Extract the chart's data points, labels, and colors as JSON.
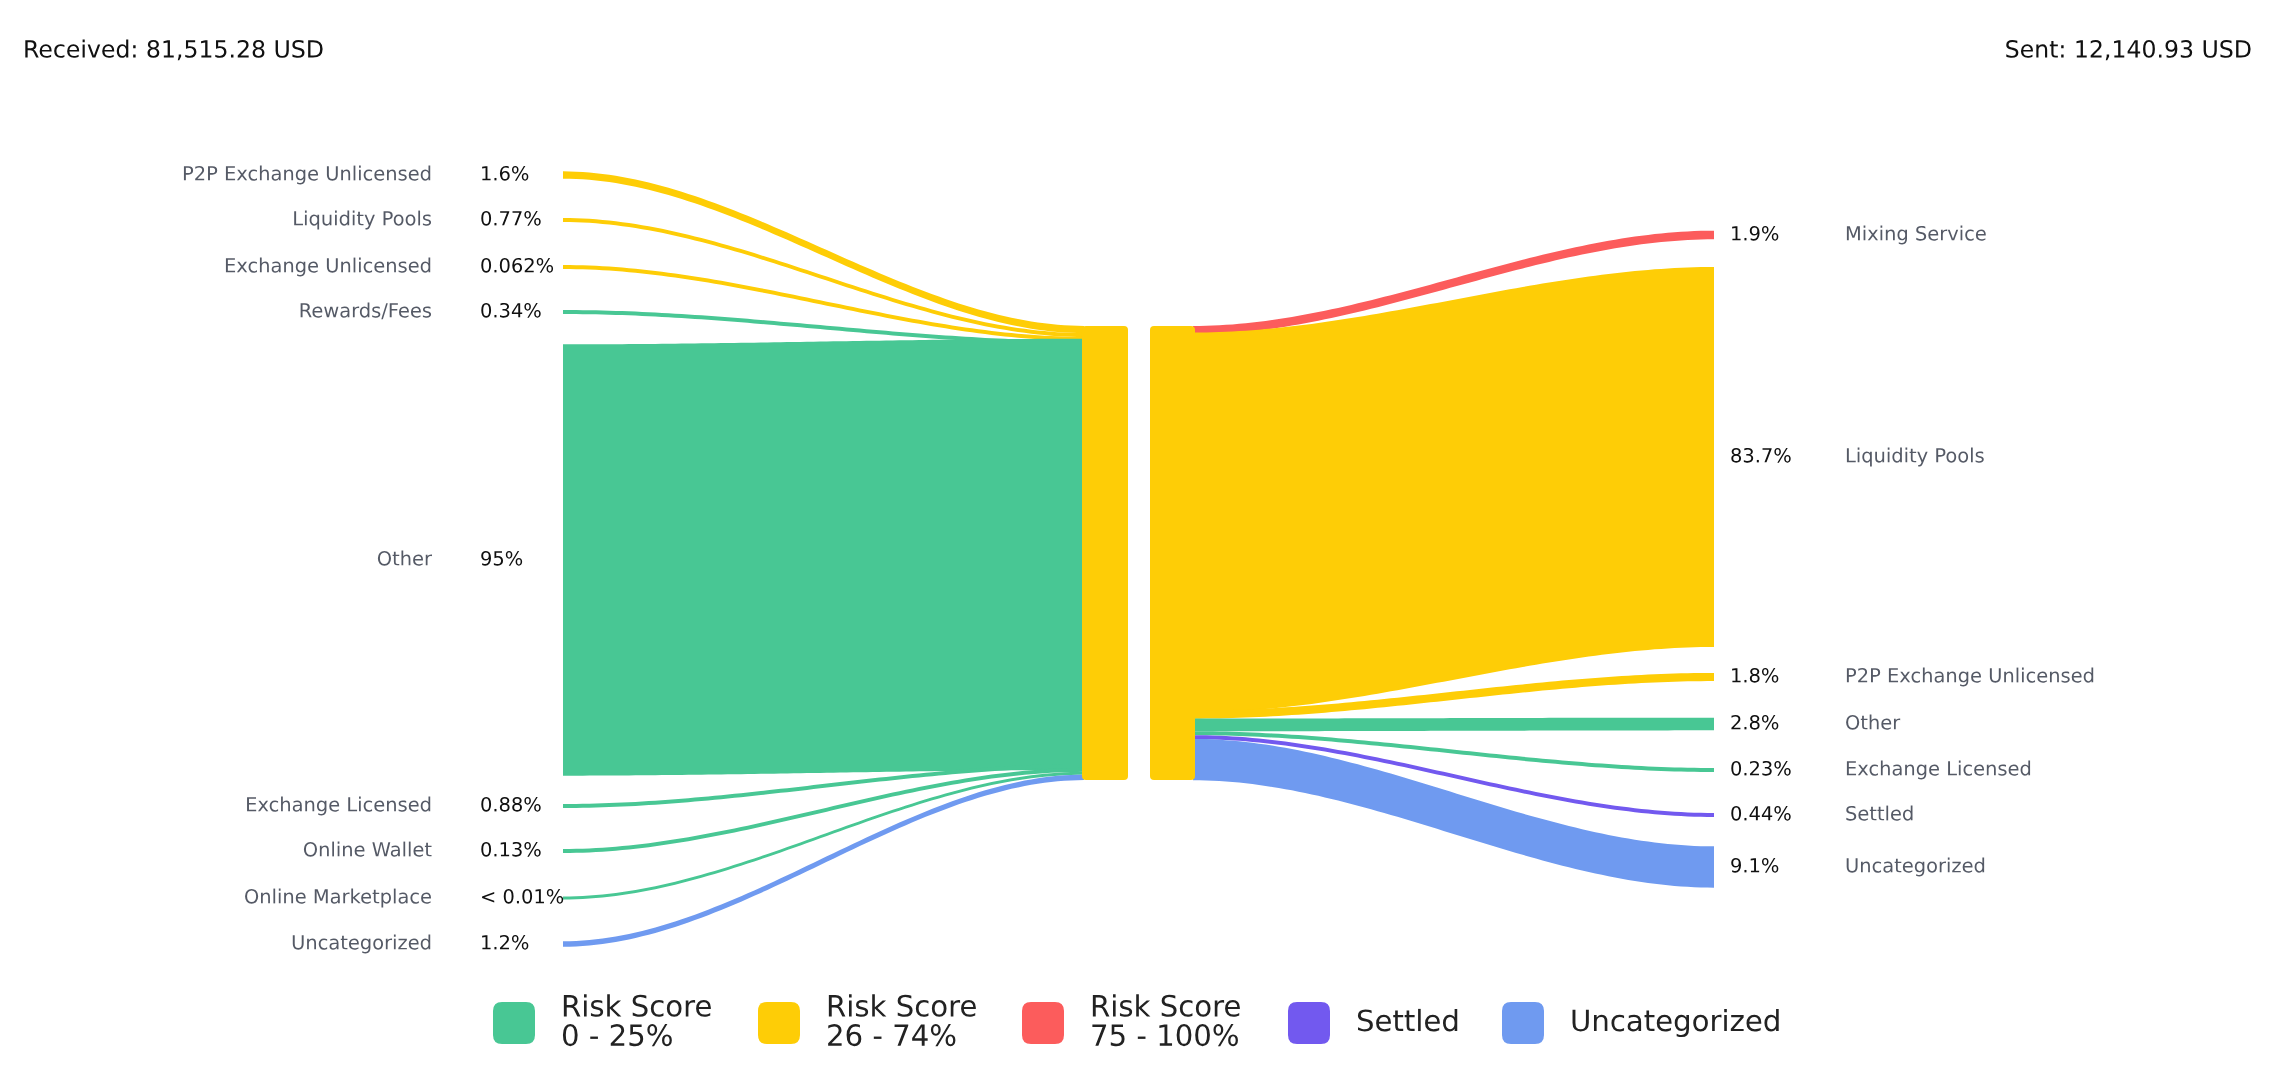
{
  "chart_data": [
    {
      "type": "other",
      "title": "Received: 81,515.28 USD",
      "categories": [
        "P2P Exchange Unlicensed",
        "Liquidity Pools",
        "Exchange Unlicensed",
        "Rewards/Fees",
        "Other",
        "Exchange Licensed",
        "Online Wallet",
        "Online Marketplace",
        "Uncategorized"
      ],
      "values": [
        1.6,
        0.77,
        0.062,
        0.34,
        95,
        0.88,
        0.13,
        null,
        1.2
      ],
      "value_labels": [
        "1.6%",
        "0.77%",
        "0.062%",
        "0.34%",
        "95%",
        "0.88%",
        "0.13%",
        "< 0.01%",
        "1.2%"
      ],
      "colors": [
        "#fecd06",
        "#fecd06",
        "#fecd06",
        "#48c794",
        "#48c794",
        "#48c794",
        "#48c794",
        "#48c794",
        "#6f9af0"
      ]
    },
    {
      "type": "other",
      "title": "Sent: 12,140.93 USD",
      "legend": "bottom",
      "categories": [
        "Mixing Service",
        "Liquidity Pools",
        "P2P Exchange Unlicensed",
        "Other",
        "Exchange Licensed",
        "Settled",
        "Uncategorized"
      ],
      "series": [
        {
          "name": "Risk Score\n0 - 25%",
          "color": "#48c794",
          "values": [
            null,
            null,
            null,
            2.8,
            0.23,
            null,
            null
          ],
          "value_labels": [
            null,
            null,
            null,
            "2.8%",
            "0.23%",
            null,
            null
          ]
        },
        {
          "name": "Risk Score\n26 - 74%",
          "color": "#fecd06",
          "values": [
            null,
            83.7,
            1.8,
            null,
            null,
            null,
            null
          ],
          "value_labels": [
            null,
            "83.7%",
            "1.8%",
            null,
            null,
            null,
            null
          ]
        },
        {
          "name": "Risk Score\n75 - 100%",
          "color": "#fc5c5c",
          "values": [
            1.9,
            null,
            null,
            null,
            null,
            null,
            null
          ],
          "value_labels": [
            "1.9%",
            null,
            null,
            null,
            null,
            null,
            null
          ]
        },
        {
          "name": "Settled",
          "color": "#7259ef",
          "values": [
            null,
            null,
            null,
            null,
            null,
            0.44,
            null
          ],
          "value_labels": [
            null,
            null,
            null,
            null,
            null,
            "0.44%",
            null
          ]
        },
        {
          "name": "Uncategorized",
          "color": "#6f9af0",
          "values": [
            null,
            null,
            null,
            null,
            null,
            null,
            9.1
          ],
          "value_labels": [
            null,
            null,
            null,
            null,
            null,
            null,
            "9.1%"
          ]
        }
      ]
    }
  ]
}
